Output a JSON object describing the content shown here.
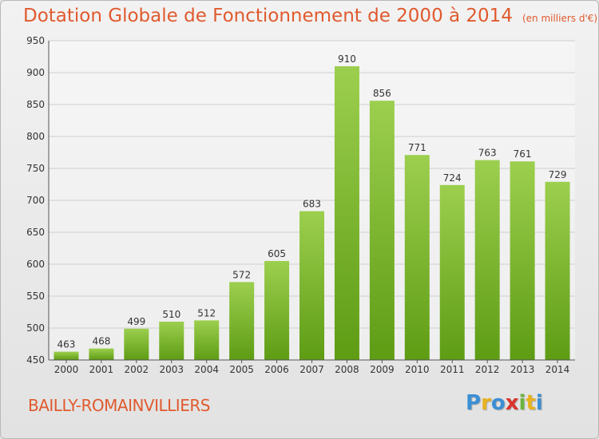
{
  "header": {
    "title": "Dotation Globale de Fonctionnement de 2000 à 2014",
    "subtitle": "(en milliers d'€)"
  },
  "footer": {
    "commune": "BAILLY-ROMAINVILLIERS",
    "logo": "Proxiti"
  },
  "colors": {
    "title": "#e05a2e",
    "bar_top": "#9ccf4e",
    "bar_bottom": "#5e9c14",
    "logo_letters": [
      "#3b8fd4",
      "#e8b21f",
      "#3b8fd4",
      "#d9342b",
      "#6db33f",
      "#e8b21f",
      "#3b8fd4"
    ]
  },
  "chart_data": {
    "type": "bar",
    "categories": [
      "2000",
      "2001",
      "2002",
      "2003",
      "2004",
      "2005",
      "2006",
      "2007",
      "2008",
      "2009",
      "2010",
      "2011",
      "2012",
      "2013",
      "2014"
    ],
    "values": [
      463,
      468,
      499,
      510,
      512,
      572,
      605,
      683,
      910,
      856,
      771,
      724,
      763,
      761,
      729
    ],
    "ylim": [
      450,
      950
    ],
    "yticks": [
      450,
      500,
      550,
      600,
      650,
      700,
      750,
      800,
      850,
      900,
      950
    ],
    "grid": true
  }
}
